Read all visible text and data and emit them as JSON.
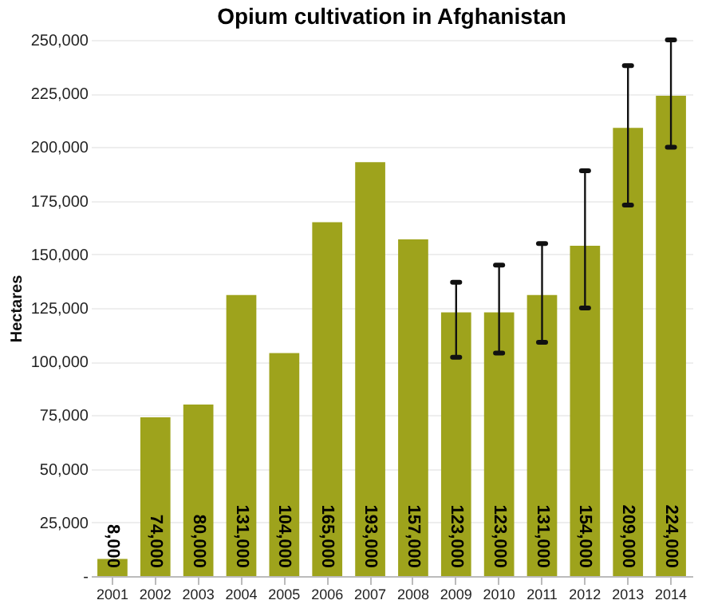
{
  "chart_data": {
    "type": "bar",
    "title": "Opium cultivation in Afghanistan",
    "ylabel": "Hectares",
    "categories": [
      "2001",
      "2002",
      "2003",
      "2004",
      "2005",
      "2006",
      "2007",
      "2008",
      "2009",
      "2010",
      "2011",
      "2012",
      "2013",
      "2014"
    ],
    "values": [
      8000,
      74000,
      80000,
      131000,
      104000,
      165000,
      193000,
      157000,
      123000,
      123000,
      131000,
      154000,
      209000,
      224000
    ],
    "value_labels": [
      "8,000",
      "74,000",
      "80,000",
      "131,000",
      "104,000",
      "165,000",
      "193,000",
      "157,000",
      "123,000",
      "123,000",
      "131,000",
      "154,000",
      "209,000",
      "224,000"
    ],
    "errors": [
      null,
      null,
      null,
      null,
      null,
      null,
      null,
      null,
      [
        102000,
        137000
      ],
      [
        104000,
        145000
      ],
      [
        109000,
        155000
      ],
      [
        125000,
        189000
      ],
      [
        173000,
        238000
      ],
      [
        200000,
        250000
      ]
    ],
    "color": "#9ea31c",
    "grid": "y",
    "ylim": [
      0,
      250000
    ],
    "yticks": [
      {
        "value": 0,
        "label": "-"
      },
      {
        "value": 25000,
        "label": "25,000"
      },
      {
        "value": 50000,
        "label": "50,000"
      },
      {
        "value": 75000,
        "label": "75,000"
      },
      {
        "value": 100000,
        "label": "100,000"
      },
      {
        "value": 125000,
        "label": "125,000"
      },
      {
        "value": 150000,
        "label": "150,000"
      },
      {
        "value": 175000,
        "label": "175,000"
      },
      {
        "value": 200000,
        "label": "200,000"
      },
      {
        "value": 225000,
        "label": "225,000"
      },
      {
        "value": 250000,
        "label": "250,000"
      }
    ]
  }
}
